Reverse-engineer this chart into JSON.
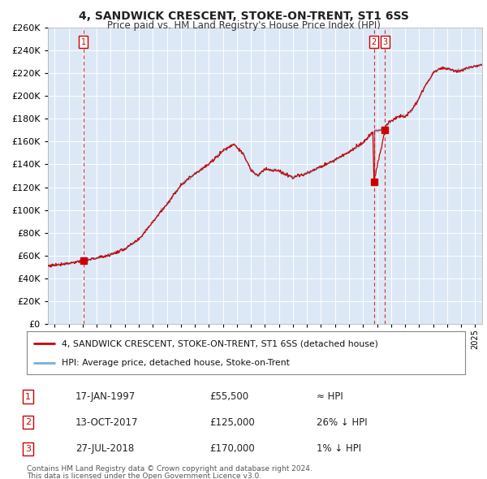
{
  "title": "4, SANDWICK CRESCENT, STOKE-ON-TRENT, ST1 6SS",
  "subtitle": "Price paid vs. HM Land Registry's House Price Index (HPI)",
  "legend_line1": "4, SANDWICK CRESCENT, STOKE-ON-TRENT, ST1 6SS (detached house)",
  "legend_line2": "HPI: Average price, detached house, Stoke-on-Trent",
  "footer1": "Contains HM Land Registry data © Crown copyright and database right 2024.",
  "footer2": "This data is licensed under the Open Government Licence v3.0.",
  "table": [
    {
      "num": "1",
      "date": "17-JAN-1997",
      "price": "£55,500",
      "rel": "≈ HPI"
    },
    {
      "num": "2",
      "date": "13-OCT-2017",
      "price": "£125,000",
      "rel": "26% ↓ HPI"
    },
    {
      "num": "3",
      "date": "27-JUL-2018",
      "price": "£170,000",
      "rel": "1% ↓ HPI"
    }
  ],
  "sale_markers": [
    {
      "year": 1997.04,
      "price": 55500,
      "label": "1"
    },
    {
      "year": 2017.78,
      "price": 125000,
      "label": "2"
    },
    {
      "year": 2018.57,
      "price": 170000,
      "label": "3"
    }
  ],
  "hpi_color": "#7aadd4",
  "price_color": "#cc0000",
  "chart_bg": "#dce8f5",
  "background_color": "#ffffff",
  "grid_color": "#ffffff",
  "ylim": [
    0,
    260000
  ],
  "ytick_step": 20000,
  "xmin": 1994.5,
  "xmax": 2025.5
}
